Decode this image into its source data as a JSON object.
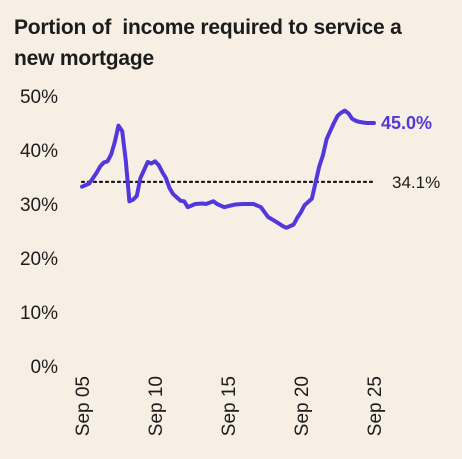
{
  "chart_data": {
    "type": "line",
    "title": "Portion of  income required to service a new mortgage",
    "xlabel": "",
    "ylabel": "",
    "ylim": [
      0,
      50
    ],
    "yticks": [
      0,
      10,
      20,
      30,
      40,
      50
    ],
    "ytick_labels": [
      "0%",
      "10%",
      "20%",
      "30%",
      "40%",
      "50%"
    ],
    "xlim": [
      2005.75,
      2025.75
    ],
    "xticks": [
      2005.75,
      2010.75,
      2015.75,
      2020.75,
      2025.75
    ],
    "xtick_labels": [
      "Sep 05",
      "Sep 10",
      "Sep 15",
      "Sep 20",
      "Sep 25"
    ],
    "line_color": "#5237dc",
    "grid": false,
    "series": [
      {
        "x": [
          2005.75,
          2006.25,
          2006.75,
          2007.0,
          2007.25,
          2007.5,
          2007.75,
          2008.0,
          2008.25,
          2008.5,
          2008.75,
          2009.0,
          2009.25,
          2009.5,
          2009.75,
          2010.0,
          2010.25,
          2010.5,
          2010.75,
          2011.0,
          2011.25,
          2011.5,
          2011.75,
          2012.0,
          2012.25,
          2012.5,
          2012.75,
          2013.0,
          2013.5,
          2014.0,
          2014.25,
          2014.75,
          2015.0,
          2015.5,
          2015.75,
          2016.25,
          2016.75,
          2017.5,
          2018.0,
          2018.5,
          2019.0,
          2019.5,
          2019.75,
          2020.25,
          2020.5,
          2020.75,
          2021.0,
          2021.5,
          2022.0,
          2022.25,
          2022.5,
          2022.75,
          2023.0,
          2023.25,
          2023.5,
          2023.75,
          2024.0,
          2024.25,
          2024.5,
          2024.75,
          2025.0,
          2025.25,
          2025.75
        ],
        "values": [
          33.2,
          33.8,
          35.8,
          37.0,
          37.7,
          37.9,
          39.2,
          41.5,
          44.5,
          43.5,
          38.0,
          30.5,
          30.8,
          31.5,
          34.8,
          36.3,
          37.8,
          37.5,
          37.9,
          37.2,
          35.9,
          34.8,
          32.9,
          31.8,
          31.2,
          30.6,
          30.5,
          29.4,
          30.0,
          30.1,
          30.0,
          30.5,
          30.0,
          29.4,
          29.6,
          29.9,
          30.0,
          30.0,
          29.4,
          27.6,
          26.8,
          25.9,
          25.6,
          26.2,
          27.5,
          28.5,
          29.8,
          31.0,
          37.0,
          39.0,
          42.0,
          43.5,
          45.0,
          46.3,
          46.9,
          47.3,
          46.8,
          45.8,
          45.4,
          45.2,
          45.1,
          45.0,
          45.0
        ]
      }
    ],
    "reference_line": {
      "value": 34.1,
      "label": "34.1%",
      "style": "dotted"
    },
    "annotations": [
      {
        "text": "45.0%",
        "at": "end of series",
        "color": "#5237dc"
      }
    ]
  }
}
